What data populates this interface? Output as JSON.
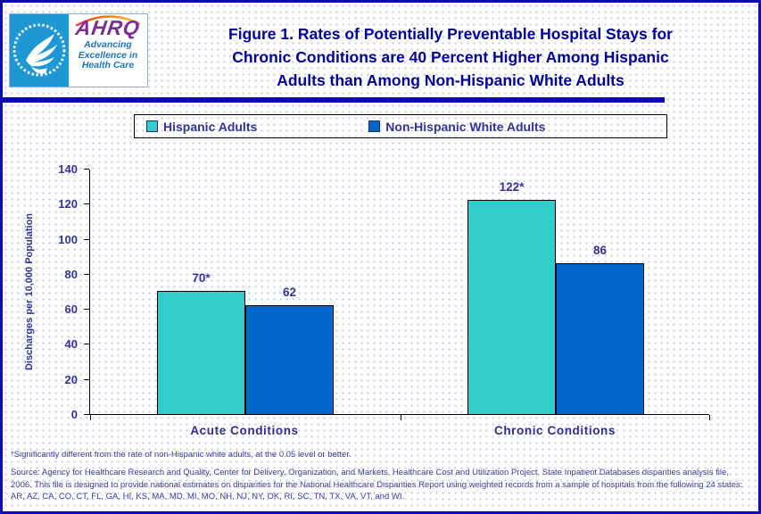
{
  "header": {
    "logo": {
      "ahrq_text": "AHRQ",
      "tagline_lines": [
        "Advancing",
        "Excellence in",
        "Health Care"
      ]
    },
    "title_lines": [
      "Figure 1. Rates of Potentially Preventable Hospital Stays for",
      "Chronic Conditions are 40 Percent Higher Among Hispanic",
      "Adults than Among Non-Hispanic White Adults"
    ]
  },
  "legend": {
    "items": [
      {
        "label": "Hispanic Adults",
        "color": "#33CCCC"
      },
      {
        "label": "Non-Hispanic White Adults",
        "color": "#0066CC"
      }
    ]
  },
  "chart_data": {
    "type": "bar",
    "title": "Figure 1. Rates of Potentially Preventable Hospital Stays for Chronic Conditions are 40 Percent Higher Among Hispanic Adults than Among Non-Hispanic White Adults",
    "categories": [
      "Acute Conditions",
      "Chronic Conditions"
    ],
    "series": [
      {
        "name": "Hispanic Adults",
        "color": "#33CCCC",
        "values": [
          70,
          122
        ],
        "labels": [
          "70*",
          "122*"
        ]
      },
      {
        "name": "Non-Hispanic White Adults",
        "color": "#0066CC",
        "values": [
          62,
          86
        ],
        "labels": [
          "62",
          "86"
        ]
      }
    ],
    "xlabel": "",
    "ylabel": "Discharges per 10,000 Population",
    "ylim": [
      0,
      140
    ],
    "yticks": [
      0,
      20,
      40,
      60,
      80,
      100,
      120,
      140
    ],
    "grid": false,
    "legend_position": "top"
  },
  "footnotes": {
    "significance": "*Significantly different from the rate of non-Hispanic white adults, at the 0.05 level or better.",
    "source": "Source: Agency for Healthcare Research and Quality, Center for Delivery, Organization, and Markets, Healthcare Cost and Utilization Project, State Inpatient Databases disparities analysis file, 2006. This file is designed to provide national estimates on disparities for the National Healthcare Disparities Report using weighted records from a sample of hospitals from the following 24 states: AR, AZ, CA, CO, CT, FL, GA, HI, KS, MA, MD, MI, MO, NH, NJ, NY, OK, RI, SC, TN, TX, VA, VT, and WI."
  },
  "colors": {
    "hispanic_teal": "#33CCCC",
    "non_hispanic_blue": "#0066CC",
    "title_navy": "#000099",
    "text_indigo": "#333399",
    "border_blue": "#0C0CB4",
    "hhs_seal_cyan": "#1E97D5",
    "ahrq_purple": "#7B2E91",
    "tagline_blue": "#1B75BC"
  }
}
